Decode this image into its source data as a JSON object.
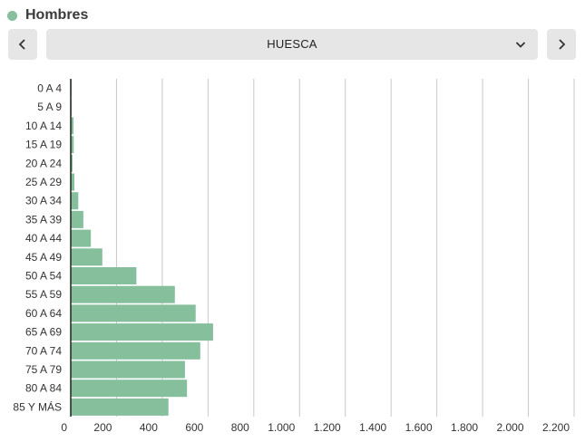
{
  "legend": {
    "label": "Hombres",
    "color": "#85bf9c"
  },
  "selector": {
    "value": "HUESCA",
    "prev_icon": "chevron-left-icon",
    "next_icon": "chevron-right-icon",
    "dropdown_icon": "chevron-down-icon"
  },
  "chart_data": {
    "type": "bar",
    "orientation": "horizontal",
    "categories": [
      "0 A 4",
      "5 A 9",
      "10 A 14",
      "15 A 19",
      "20 A 24",
      "25 A 29",
      "30 A 34",
      "35 A 39",
      "40 A 44",
      "45 A 49",
      "50 A 54",
      "55 A 59",
      "60 A 64",
      "65 A 69",
      "70 A 74",
      "75 A 79",
      "80 A 84",
      "85 Y MÁS"
    ],
    "series": [
      {
        "name": "Hombres",
        "color": "#85bf9c",
        "values": [
          2,
          3,
          12,
          13,
          8,
          16,
          33,
          55,
          88,
          138,
          287,
          455,
          546,
          622,
          566,
          499,
          508,
          427
        ]
      }
    ],
    "xlim": [
      0,
      2200
    ],
    "xticks": [
      0,
      200,
      400,
      600,
      800,
      1000,
      1200,
      1400,
      1600,
      1800,
      2000,
      2200
    ],
    "xtick_labels": [
      "0",
      "200",
      "400",
      "600",
      "800",
      "1.000",
      "1.200",
      "1.400",
      "1.600",
      "1.800",
      "2.000",
      "2.200"
    ],
    "grid": true
  }
}
